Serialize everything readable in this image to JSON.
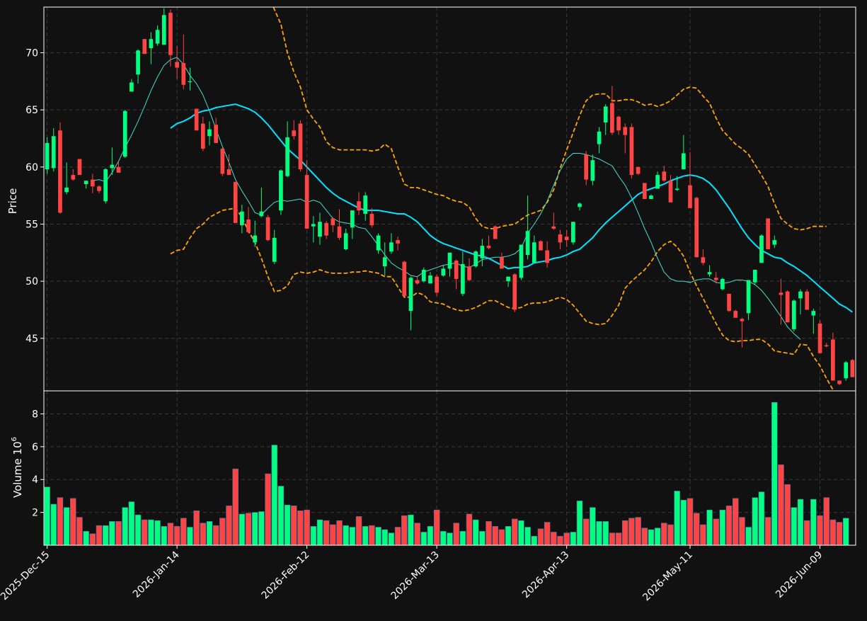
{
  "theme": {
    "background": "#111111",
    "up_color": "#00ff80",
    "down_color": "#ff4444",
    "grid_color": "#3a3a3a",
    "text_color": "#ffffff",
    "bollinger_color": "#ffa500",
    "ma_fast_color": "#40e0d0",
    "ma_slow_color": "#00e5ff"
  },
  "chart_data": {
    "type": "candlestick",
    "ylabel": "Price",
    "volume_label": "Volume  10",
    "volume_exponent": "6",
    "price_ylim": [
      40.4,
      74.0
    ],
    "price_ticks": [
      "45",
      "50",
      "55",
      "60",
      "65",
      "70"
    ],
    "volume_ylim": [
      0,
      9.4
    ],
    "volume_ticks": [
      "2",
      "4",
      "6",
      "8"
    ],
    "x_tick_labels": [
      "2025-Dec-15",
      "2026-Jan-14",
      "2026-Feb-12",
      "2026-Mar-13",
      "2026-Apr-13",
      "2026-May-11",
      "2026-Jun-09"
    ],
    "x_tick_index": [
      0,
      20,
      40,
      60,
      80,
      99,
      119
    ],
    "grid": true,
    "ohlc": [
      [
        59.8,
        62.6,
        59.4,
        62.1
      ],
      [
        59.9,
        63.4,
        59.6,
        62.7
      ],
      [
        63.2,
        63.9,
        55.9,
        56.0
      ],
      [
        57.8,
        60.4,
        57.6,
        58.2
      ],
      [
        59.3,
        59.8,
        58.8,
        58.9
      ],
      [
        60.7,
        60.7,
        59.3,
        59.3
      ],
      [
        58.5,
        58.8,
        58.1,
        58.8
      ],
      [
        58.9,
        59.4,
        57.7,
        58.3
      ],
      [
        58.3,
        58.4,
        57.7,
        57.9
      ],
      [
        57.0,
        59.9,
        56.8,
        59.8
      ],
      [
        59.9,
        61.7,
        59.3,
        60.2
      ],
      [
        60.0,
        60.6,
        59.5,
        59.5
      ],
      [
        60.9,
        65.0,
        60.8,
        64.9
      ],
      [
        66.6,
        67.7,
        66.6,
        67.4
      ],
      [
        68.1,
        70.3,
        67.3,
        70.2
      ],
      [
        71.2,
        71.2,
        69.9,
        69.9
      ],
      [
        70.4,
        71.8,
        69.0,
        71.2
      ],
      [
        70.8,
        72.4,
        70.6,
        72.0
      ],
      [
        70.7,
        73.9,
        70.7,
        73.3
      ],
      [
        73.5,
        73.8,
        68.8,
        69.8
      ],
      [
        69.2,
        70.6,
        67.7,
        68.7
      ],
      [
        69.1,
        71.6,
        66.8,
        67.2
      ],
      [
        67.5,
        68.7,
        66.7,
        67.5
      ],
      [
        65.1,
        65.1,
        63.2,
        63.2
      ],
      [
        63.8,
        64.4,
        61.4,
        61.6
      ],
      [
        62.7,
        64.0,
        61.9,
        63.3
      ],
      [
        63.7,
        64.3,
        62.1,
        62.1
      ],
      [
        61.6,
        61.7,
        59.2,
        59.4
      ],
      [
        59.8,
        61.1,
        59.3,
        59.3
      ],
      [
        58.7,
        58.7,
        55.3,
        55.1
      ],
      [
        54.9,
        56.7,
        54.2,
        56.1
      ],
      [
        55.4,
        56.5,
        54.2,
        54.3
      ],
      [
        53.4,
        55.3,
        53.0,
        54.0
      ],
      [
        55.7,
        58.2,
        55.6,
        56.1
      ],
      [
        55.6,
        55.8,
        53.5,
        53.6
      ],
      [
        51.7,
        54.5,
        51.5,
        53.8
      ],
      [
        56.2,
        59.8,
        55.8,
        59.7
      ],
      [
        59.2,
        64.0,
        59.1,
        62.6
      ],
      [
        63.2,
        64.1,
        62.4,
        62.7
      ],
      [
        63.8,
        64.1,
        59.6,
        59.8
      ],
      [
        59.3,
        60.6,
        54.6,
        54.6
      ],
      [
        54.8,
        55.7,
        53.4,
        55.0
      ],
      [
        53.9,
        56.0,
        53.2,
        55.2
      ],
      [
        55.1,
        55.3,
        53.7,
        54.0
      ],
      [
        55.5,
        55.6,
        54.3,
        54.9
      ],
      [
        54.8,
        56.3,
        53.6,
        53.8
      ],
      [
        52.8,
        54.6,
        52.7,
        54.2
      ],
      [
        54.7,
        55.9,
        53.7,
        56.2
      ],
      [
        57.0,
        57.8,
        55.8,
        56.2
      ],
      [
        55.9,
        57.8,
        55.3,
        57.5
      ],
      [
        55.9,
        56.4,
        54.7,
        54.9
      ],
      [
        52.7,
        54.2,
        52.4,
        54.0
      ],
      [
        51.3,
        53.4,
        50.5,
        52.1
      ],
      [
        52.6,
        54.2,
        52.4,
        53.4
      ],
      [
        53.6,
        53.9,
        52.7,
        53.3
      ],
      [
        51.7,
        51.8,
        48.7,
        48.7
      ],
      [
        47.4,
        50.4,
        45.7,
        50.3
      ],
      [
        50.1,
        50.4,
        49.7,
        49.8
      ],
      [
        50.0,
        51.2,
        49.9,
        51.0
      ],
      [
        49.8,
        50.8,
        49.8,
        50.5
      ],
      [
        50.4,
        50.6,
        48.7,
        49.0
      ],
      [
        50.5,
        51.4,
        50.4,
        51.1
      ],
      [
        51.1,
        52.5,
        50.4,
        52.5
      ],
      [
        51.8,
        51.9,
        49.3,
        50.2
      ],
      [
        48.9,
        52.6,
        48.7,
        51.5
      ],
      [
        51.3,
        52.0,
        50.0,
        50.1
      ],
      [
        51.3,
        52.7,
        51.2,
        52.6
      ],
      [
        52.0,
        53.7,
        51.3,
        53.1
      ],
      [
        53.1,
        54.0,
        52.8,
        52.9
      ],
      [
        54.8,
        54.9,
        53.7,
        53.7
      ],
      [
        52.1,
        52.5,
        51.1,
        51.1
      ],
      [
        50.0,
        50.4,
        49.5,
        50.4
      ],
      [
        50.6,
        50.7,
        47.3,
        47.5
      ],
      [
        50.3,
        53.2,
        50.1,
        53.2
      ],
      [
        52.3,
        57.5,
        51.9,
        54.4
      ],
      [
        51.6,
        54.0,
        51.6,
        53.4
      ],
      [
        53.5,
        53.6,
        52.8,
        52.7
      ],
      [
        52.7,
        53.5,
        51.2,
        51.6
      ],
      [
        54.8,
        56.0,
        54.5,
        54.6
      ],
      [
        54.1,
        54.5,
        52.8,
        53.4
      ],
      [
        53.9,
        54.5,
        53.0,
        53.6
      ],
      [
        53.4,
        55.1,
        53.2,
        55.2
      ],
      [
        56.5,
        56.9,
        56.2,
        56.8
      ],
      [
        61.1,
        61.4,
        58.4,
        58.9
      ],
      [
        58.8,
        61.1,
        58.4,
        60.6
      ],
      [
        62.0,
        63.5,
        61.2,
        63.1
      ],
      [
        63.9,
        65.5,
        62.8,
        65.3
      ],
      [
        65.6,
        67.1,
        62.8,
        63.0
      ],
      [
        64.4,
        64.5,
        62.8,
        63.2
      ],
      [
        63.5,
        63.8,
        61.2,
        62.8
      ],
      [
        63.5,
        63.8,
        59.0,
        59.3
      ],
      [
        60.0,
        60.0,
        59.3,
        59.4
      ],
      [
        58.6,
        58.6,
        57.2,
        57.2
      ],
      [
        57.2,
        57.6,
        57.2,
        57.5
      ],
      [
        58.1,
        59.6,
        58.1,
        59.3
      ],
      [
        59.6,
        60.1,
        58.7,
        58.8
      ],
      [
        58.8,
        59.3,
        56.9,
        56.9
      ],
      [
        58.0,
        59.2,
        57.9,
        58.1
      ],
      [
        59.8,
        62.8,
        59.8,
        61.2
      ],
      [
        58.4,
        61.3,
        56.4,
        56.4
      ],
      [
        57.3,
        57.4,
        52.1,
        52.1
      ],
      [
        52.1,
        52.8,
        51.4,
        51.6
      ],
      [
        50.6,
        51.4,
        50.4,
        50.8
      ],
      [
        50.3,
        50.8,
        49.8,
        50.1
      ],
      [
        49.3,
        50.3,
        49.2,
        50.2
      ],
      [
        48.9,
        48.9,
        47.3,
        47.4
      ],
      [
        47.4,
        47.5,
        46.9,
        46.8
      ],
      [
        46.7,
        46.8,
        44.2,
        46.5
      ],
      [
        47.2,
        50.0,
        46.6,
        50.1
      ],
      [
        49.9,
        51.0,
        49.7,
        51.0
      ],
      [
        51.6,
        54.1,
        51.6,
        54.0
      ],
      [
        55.5,
        55.5,
        52.8,
        52.8
      ],
      [
        53.2,
        54.0,
        52.9,
        53.6
      ],
      [
        49.0,
        50.2,
        46.2,
        48.8
      ],
      [
        49.1,
        49.2,
        46.4,
        46.4
      ],
      [
        45.8,
        48.4,
        45.6,
        48.3
      ],
      [
        48.5,
        49.3,
        47.1,
        49.1
      ],
      [
        49.1,
        49.3,
        47.5,
        47.5
      ],
      [
        47.0,
        47.6,
        45.4,
        47.4
      ],
      [
        46.3,
        46.6,
        43.7,
        43.7
      ],
      [
        44.4,
        44.6,
        44.2,
        44.3
      ],
      [
        44.9,
        45.5,
        41.3,
        41.3
      ],
      [
        41.3,
        41.2,
        40.9,
        41.0
      ],
      [
        41.5,
        43.0,
        41.3,
        42.9
      ],
      [
        43.1,
        43.2,
        41.8,
        41.6
      ]
    ],
    "volume": [
      3.55,
      2.5,
      2.9,
      2.3,
      2.85,
      1.7,
      0.85,
      0.7,
      1.2,
      1.2,
      1.45,
      1.45,
      2.3,
      2.65,
      1.85,
      1.55,
      1.55,
      1.5,
      1.15,
      1.35,
      1.15,
      1.65,
      1.1,
      2.1,
      1.35,
      1.45,
      1.2,
      1.65,
      2.4,
      4.65,
      1.9,
      1.95,
      2.0,
      2.05,
      4.35,
      6.1,
      3.6,
      2.45,
      2.4,
      2.1,
      2.15,
      1.15,
      1.55,
      1.5,
      1.25,
      1.5,
      1.2,
      1.1,
      1.75,
      1.15,
      1.2,
      1.1,
      0.95,
      0.75,
      1.1,
      1.8,
      1.85,
      1.35,
      0.8,
      1.15,
      2.15,
      0.85,
      0.75,
      1.35,
      0.85,
      1.9,
      1.55,
      0.85,
      1.45,
      1.15,
      0.95,
      1.15,
      1.6,
      1.5,
      1.1,
      0.55,
      1.0,
      1.4,
      0.8,
      0.55,
      0.75,
      0.8,
      2.7,
      1.6,
      2.3,
      1.45,
      1.45,
      0.75,
      0.75,
      1.5,
      1.65,
      1.7,
      1.05,
      0.95,
      1.05,
      1.35,
      1.25,
      3.3,
      2.75,
      2.85,
      1.95,
      1.25,
      2.15,
      1.6,
      2.15,
      2.4,
      2.85,
      1.7,
      1.1,
      2.9,
      3.25,
      1.7,
      8.7,
      4.9,
      3.7,
      2.3,
      2.8,
      1.5,
      2.8,
      1.8,
      2.9,
      1.55,
      1.4,
      1.65
    ],
    "ma_slow": {
      "start": 19,
      "values": [
        63.4,
        63.8,
        64.0,
        64.3,
        64.7,
        64.9,
        65.0,
        65.2,
        65.3,
        65.4,
        65.5,
        65.3,
        65.1,
        64.8,
        64.3,
        63.7,
        63.0,
        62.3,
        61.6,
        61.1,
        60.6,
        60.0,
        59.4,
        58.8,
        58.2,
        57.7,
        57.3,
        57.0,
        56.7,
        56.4,
        56.2,
        56.2,
        56.2,
        56.1,
        56.0,
        55.9,
        55.9,
        55.6,
        55.2,
        54.6,
        54.0,
        53.6,
        53.3,
        53.1,
        52.9,
        52.7,
        52.5,
        52.3,
        52.2,
        52.0,
        51.7,
        51.4,
        51.1,
        51.2,
        51.2,
        51.3,
        51.6,
        51.7,
        51.8,
        52.0,
        52.1,
        52.3,
        52.6,
        52.8,
        53.3,
        53.8,
        54.5,
        55.1,
        55.6,
        56.1,
        56.6,
        57.1,
        57.6,
        57.9,
        58.1,
        58.3,
        58.5,
        58.8,
        59.0,
        59.2,
        59.3,
        59.2,
        59.0,
        58.6,
        58.0,
        57.2,
        56.4,
        55.5,
        54.6,
        53.8,
        53.2,
        52.7,
        52.4,
        52.1,
        52.0,
        51.6,
        51.3,
        50.9,
        50.5,
        50.0,
        49.5,
        49.0,
        48.5,
        48.0,
        47.7,
        47.3
      ]
    },
    "ma_fast": {
      "start": 7,
      "values": [
        58.8,
        58.9,
        58.7,
        59.5,
        60.5,
        61.7,
        62.8,
        64.0,
        65.3,
        66.7,
        67.9,
        68.9,
        69.4,
        69.6,
        69.0,
        68.0,
        67.3,
        66.3,
        64.9,
        63.3,
        61.8,
        60.4,
        58.9,
        57.9,
        57.0,
        56.0,
        55.8,
        56.4,
        56.9,
        57.1,
        57.0,
        57.1,
        57.2,
        56.9,
        57.1,
        56.9,
        56.2,
        55.5,
        55.2,
        55.1,
        55.0,
        54.7,
        54.6,
        53.9,
        53.1,
        52.3,
        51.6,
        51.2,
        50.9,
        50.5,
        50.4,
        50.8,
        51.0,
        51.2,
        51.4,
        51.5,
        51.6,
        51.3,
        51.2,
        51.5,
        51.9,
        52.0,
        52.1,
        52.1,
        52.2,
        52.4,
        52.9,
        54.2,
        55.0,
        55.9,
        57.0,
        58.4,
        59.7,
        60.7,
        61.2,
        61.2,
        61.1,
        60.9,
        60.7,
        60.4,
        60.1,
        59.2,
        58.4,
        57.3,
        56.0,
        54.6,
        53.4,
        52.0,
        50.8,
        50.2,
        50.0,
        50.0,
        49.9,
        50.1,
        50.2,
        50.2,
        49.9,
        49.8,
        49.9,
        50.1,
        50.1,
        50.0,
        49.7,
        49.2,
        48.5,
        47.7,
        46.9,
        46.0,
        45.4,
        44.9
      ]
    },
    "bb_upper": {
      "start": 34,
      "values": [
        75.0,
        73.8,
        72.5,
        70.0,
        68.3,
        67.0,
        65.0,
        64.2,
        63.5,
        62.2,
        61.7,
        61.5,
        61.5,
        61.5,
        61.5,
        61.5,
        61.4,
        61.5,
        62.0,
        61.6,
        60.0,
        58.5,
        58.2,
        58.2,
        58.0,
        57.8,
        57.6,
        57.5,
        57.2,
        57.0,
        56.9,
        56.5,
        55.5,
        54.8,
        54.6,
        54.6,
        54.8,
        54.9,
        55.0,
        55.4,
        55.8,
        56.0,
        56.2,
        56.9,
        58.0,
        59.9,
        61.5,
        63.0,
        64.5,
        65.8,
        66.3,
        66.4,
        66.4,
        65.8,
        65.8,
        65.9,
        65.9,
        65.7,
        65.4,
        65.5,
        65.3,
        65.5,
        65.8,
        66.3,
        66.8,
        67.0,
        66.9,
        66.2,
        65.6,
        64.3,
        63.2,
        62.6,
        62.0,
        61.6,
        61.1,
        60.2,
        59.3,
        58.3,
        56.8,
        55.5,
        55.0,
        54.6,
        54.5,
        54.6,
        54.8,
        54.8,
        54.8
      ]
    },
    "bb_lower": {
      "start": 19,
      "values": [
        52.4,
        52.7,
        52.8,
        53.8,
        54.6,
        55.0,
        55.6,
        55.9,
        56.2,
        56.3,
        56.4,
        55.6,
        54.4,
        53.4,
        52.0,
        50.4,
        49.1,
        49.2,
        49.6,
        50.6,
        50.8,
        50.7,
        50.8,
        51.0,
        50.8,
        50.7,
        50.7,
        50.7,
        50.8,
        50.8,
        50.9,
        50.8,
        50.7,
        50.4,
        50.4,
        49.5,
        48.6,
        48.6,
        49.0,
        48.8,
        48.2,
        48.1,
        48.0,
        47.7,
        47.5,
        47.4,
        47.5,
        47.7,
        48.0,
        48.3,
        48.3,
        48.0,
        47.7,
        47.6,
        47.7,
        48.0,
        48.1,
        48.1,
        48.2,
        48.4,
        48.6,
        48.4,
        47.9,
        47.2,
        46.5,
        46.3,
        46.2,
        46.3,
        47.0,
        47.9,
        49.4,
        50.0,
        50.5,
        51.0,
        51.7,
        52.6,
        53.2,
        53.5,
        53.0,
        52.2,
        50.8,
        49.6,
        48.5,
        47.4,
        46.3,
        45.3,
        44.8,
        44.7,
        44.8,
        44.8,
        44.9,
        44.9,
        44.5,
        43.9,
        43.8,
        43.7,
        43.6,
        44.5,
        44.4,
        43.4,
        42.6,
        41.5,
        40.5
      ]
    }
  }
}
